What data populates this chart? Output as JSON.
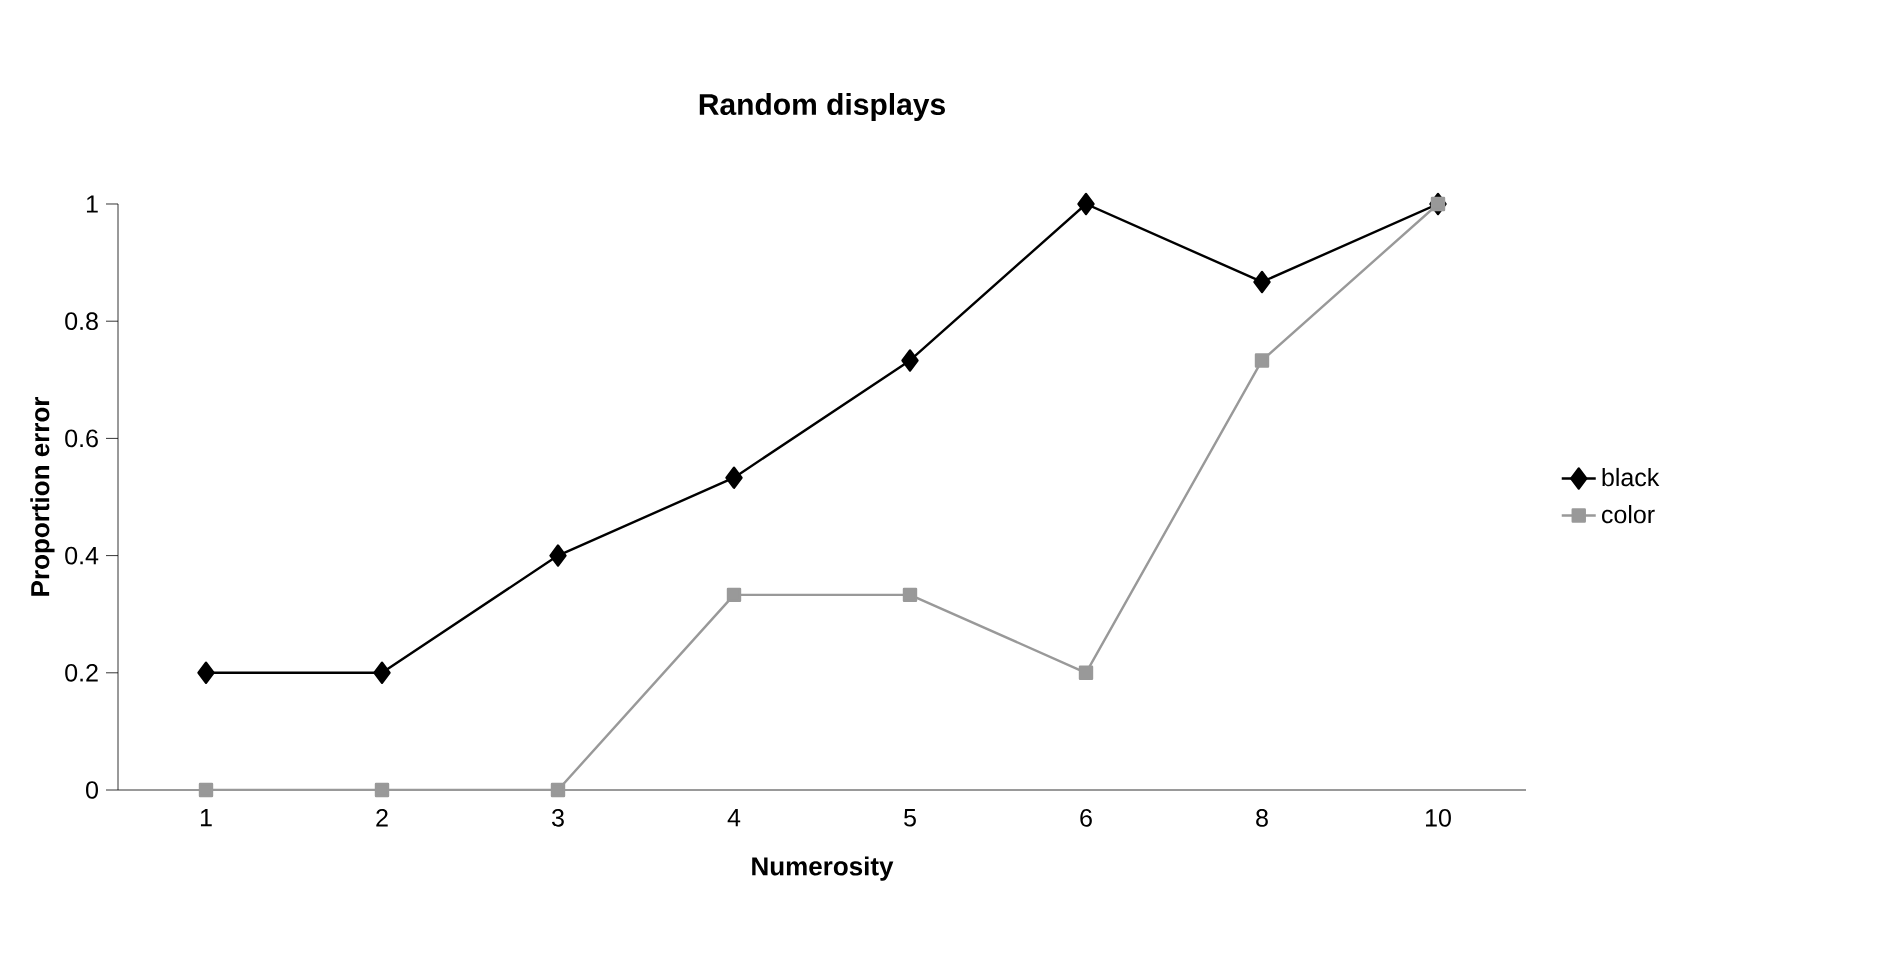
{
  "chart_data": {
    "type": "line",
    "title": "Random displays",
    "xlabel": "Numerosity",
    "ylabel": "Proportion error",
    "categories": [
      "1",
      "2",
      "3",
      "4",
      "5",
      "6",
      "8",
      "10"
    ],
    "series": [
      {
        "name": "black",
        "color": "#000000",
        "marker": "diamond",
        "values": [
          0.2,
          0.2,
          0.4,
          0.533,
          0.733,
          1,
          0.867,
          1
        ]
      },
      {
        "name": "color",
        "color": "#999999",
        "marker": "square",
        "values": [
          0,
          0,
          0,
          0.333,
          0.333,
          0.2,
          0.733,
          1
        ]
      }
    ],
    "ylim": [
      0,
      1
    ],
    "yticks": [
      0,
      0.2,
      0.4,
      0.6,
      0.8,
      1
    ],
    "legend": "right",
    "grid": false
  }
}
